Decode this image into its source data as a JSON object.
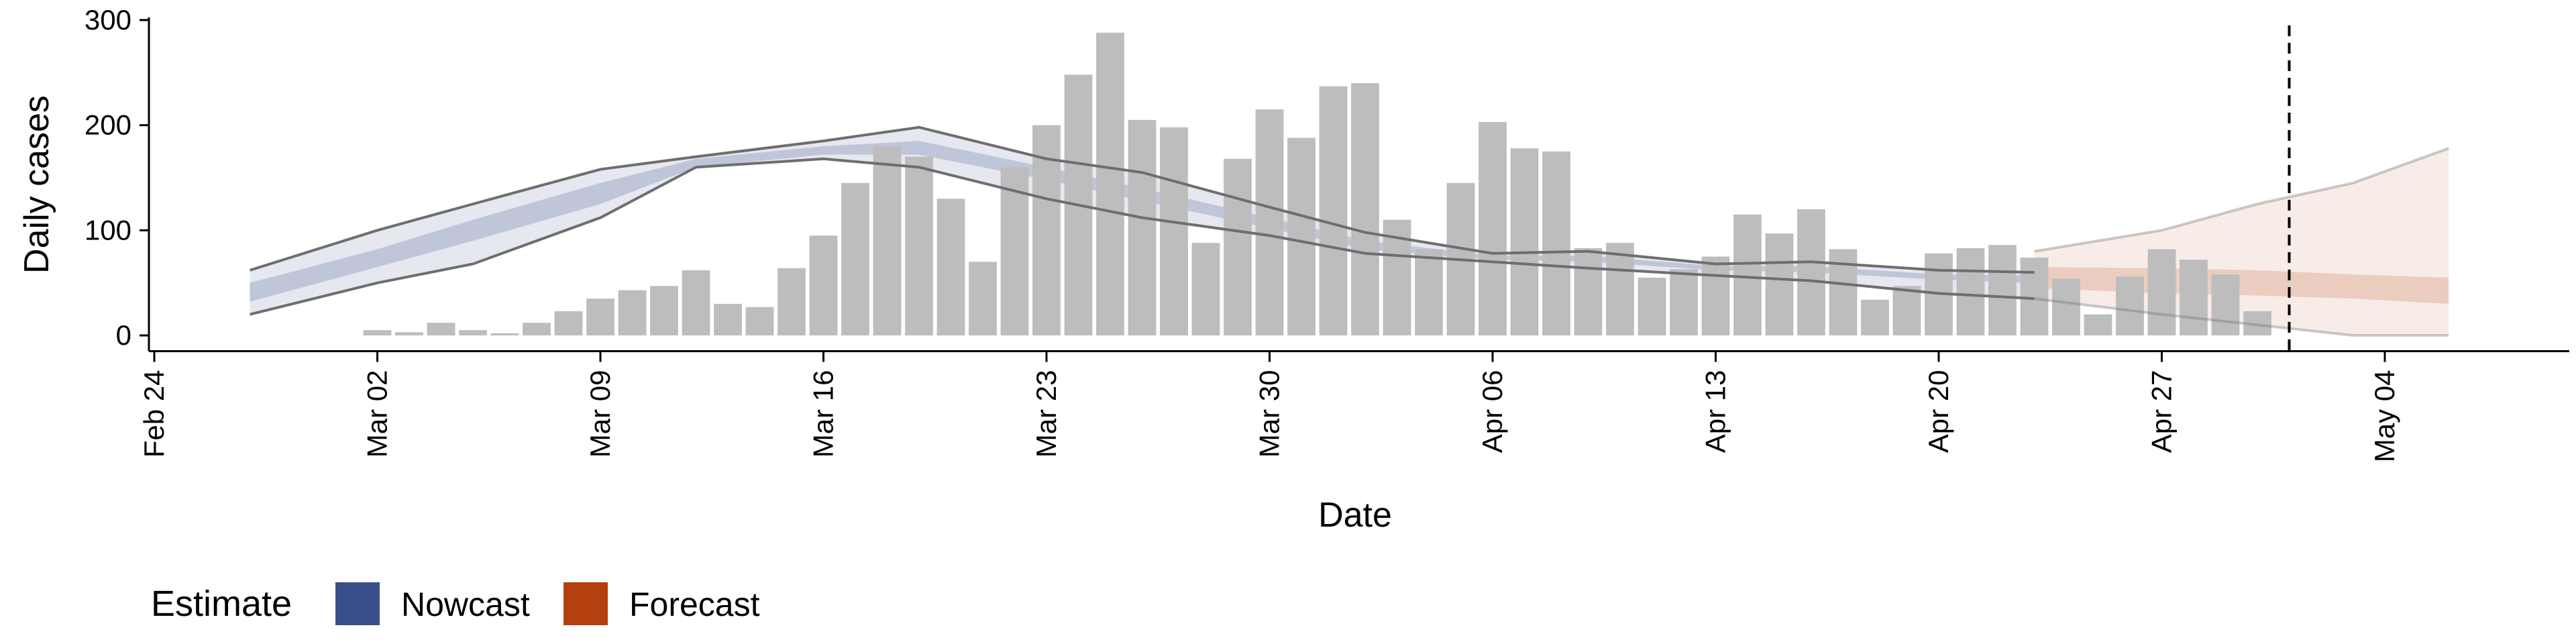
{
  "chart_data": {
    "type": "bar",
    "xlabel": "Date",
    "ylabel": "Daily cases",
    "ylim": [
      -15,
      300
    ],
    "yticks": [
      0,
      100,
      200,
      300
    ],
    "xlim": [
      "2020-02-24",
      "2020-05-12"
    ],
    "xticks": [
      {
        "date": "2020-02-24",
        "label": "Feb 24"
      },
      {
        "date": "2020-03-02",
        "label": "Mar 02"
      },
      {
        "date": "2020-03-09",
        "label": "Mar 09"
      },
      {
        "date": "2020-03-16",
        "label": "Mar 16"
      },
      {
        "date": "2020-03-23",
        "label": "Mar 23"
      },
      {
        "date": "2020-03-30",
        "label": "Mar 30"
      },
      {
        "date": "2020-04-06",
        "label": "Apr 06"
      },
      {
        "date": "2020-04-13",
        "label": "Apr 13"
      },
      {
        "date": "2020-04-20",
        "label": "Apr 20"
      },
      {
        "date": "2020-04-27",
        "label": "Apr 27"
      },
      {
        "date": "2020-05-04",
        "label": "May 04"
      }
    ],
    "grid": false,
    "legend_position": "bottom-left",
    "legend": {
      "title": "Estimate",
      "items": [
        {
          "label": "Nowcast",
          "color": "#3a4f8a"
        },
        {
          "label": "Forecast",
          "color": "#b5400f"
        }
      ]
    },
    "bar_color": "#bdbdbd",
    "vline_date": "2020-05-01",
    "observed": {
      "start_date": "2020-03-02",
      "values": [
        5,
        3,
        12,
        5,
        2,
        12,
        23,
        35,
        43,
        47,
        62,
        30,
        27,
        64,
        95,
        145,
        180,
        170,
        130,
        70,
        160,
        200,
        248,
        288,
        205,
        198,
        88,
        168,
        215,
        188,
        237,
        240,
        110,
        82,
        145,
        203,
        178,
        175,
        83,
        88,
        55,
        63,
        75,
        115,
        97,
        120,
        82,
        34,
        47,
        78,
        83,
        86,
        74,
        54,
        20,
        56,
        82,
        72,
        58,
        23
      ]
    },
    "nowcast": {
      "dates": [
        "2020-02-27",
        "2020-03-02",
        "2020-03-05",
        "2020-03-09",
        "2020-03-12",
        "2020-03-16",
        "2020-03-19",
        "2020-03-23",
        "2020-03-26",
        "2020-03-30",
        "2020-04-02",
        "2020-04-06",
        "2020-04-09",
        "2020-04-13",
        "2020-04-16",
        "2020-04-20",
        "2020-04-23"
      ],
      "outer_low": [
        20,
        50,
        68,
        112,
        160,
        168,
        160,
        130,
        112,
        95,
        78,
        70,
        64,
        57,
        52,
        40,
        35
      ],
      "outer_high": [
        62,
        100,
        125,
        158,
        170,
        185,
        198,
        168,
        155,
        122,
        98,
        78,
        80,
        68,
        70,
        62,
        60
      ],
      "inner_low": [
        32,
        65,
        90,
        125,
        160,
        172,
        172,
        148,
        128,
        102,
        82,
        72,
        70,
        62,
        60,
        53,
        50
      ],
      "inner_high": [
        50,
        82,
        110,
        145,
        168,
        180,
        185,
        160,
        140,
        112,
        90,
        76,
        76,
        66,
        66,
        58,
        57
      ]
    },
    "forecast": {
      "dates": [
        "2020-04-23",
        "2020-04-27",
        "2020-04-30",
        "2020-05-03",
        "2020-05-06"
      ],
      "outer_low": [
        35,
        20,
        10,
        0,
        0
      ],
      "outer_high": [
        80,
        100,
        125,
        145,
        178
      ],
      "inner_low": [
        45,
        40,
        38,
        35,
        30
      ],
      "inner_high": [
        65,
        64,
        62,
        58,
        55
      ]
    }
  }
}
